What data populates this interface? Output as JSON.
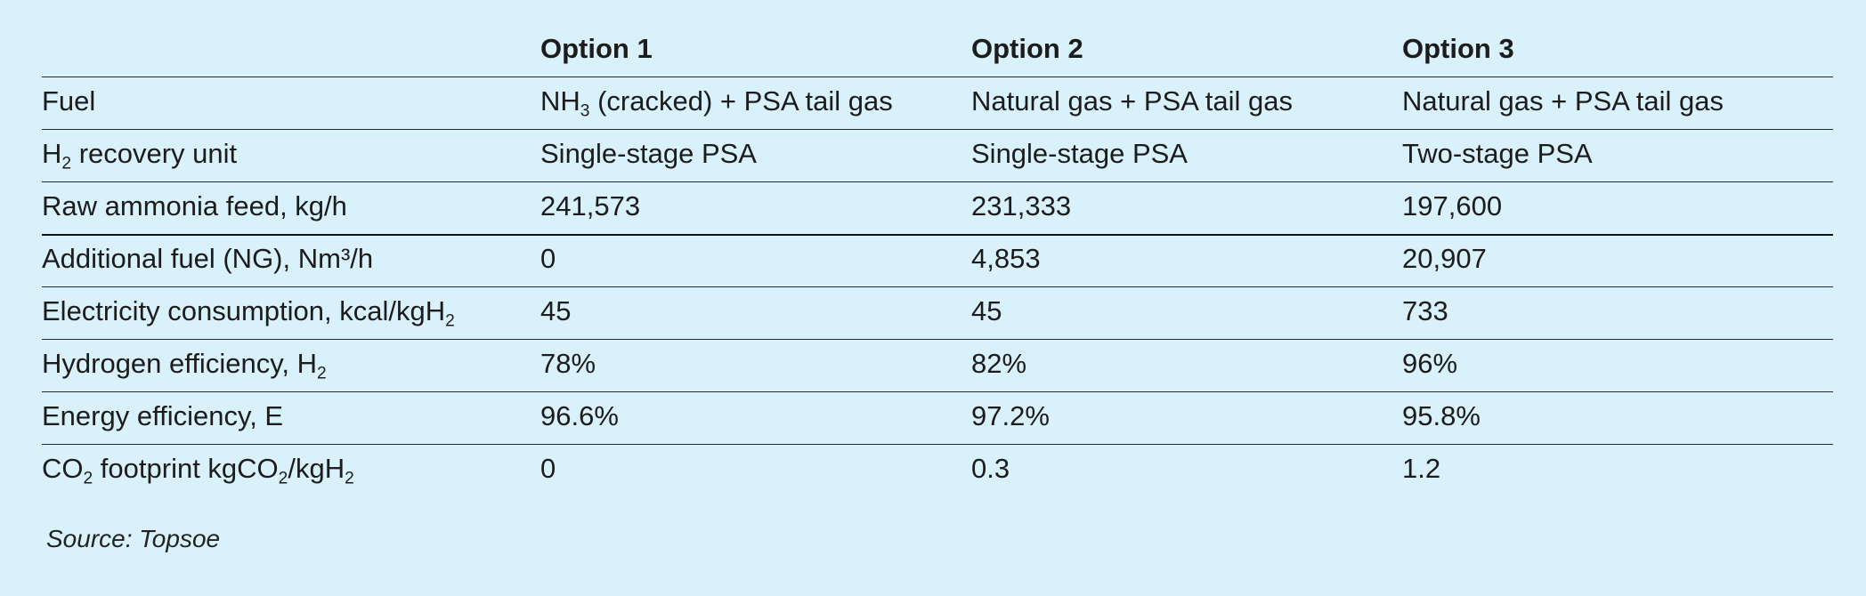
{
  "table": {
    "headers": [
      "",
      "Option 1",
      "Option 2",
      "Option 3"
    ],
    "rows": [
      {
        "label": [
          {
            "t": "Fuel"
          }
        ],
        "cells": [
          [
            {
              "t": "NH"
            },
            {
              "sub": "3"
            },
            {
              "t": " (cracked) + PSA tail gas"
            }
          ],
          [
            {
              "t": "Natural gas + PSA tail gas"
            }
          ],
          [
            {
              "t": "Natural gas + PSA tail gas"
            }
          ]
        ]
      },
      {
        "label": [
          {
            "t": "H"
          },
          {
            "sub": "2"
          },
          {
            "t": " recovery unit"
          }
        ],
        "cells": [
          [
            {
              "t": "Single-stage PSA"
            }
          ],
          [
            {
              "t": "Single-stage PSA"
            }
          ],
          [
            {
              "t": "Two-stage PSA"
            }
          ]
        ]
      },
      {
        "label": [
          {
            "t": "Raw ammonia feed, kg/h"
          }
        ],
        "cells": [
          [
            {
              "t": "241,573"
            }
          ],
          [
            {
              "t": "231,333"
            }
          ],
          [
            {
              "t": "197,600"
            }
          ]
        ]
      },
      {
        "label": [
          {
            "t": "Additional fuel (NG), Nm³/h"
          }
        ],
        "cells": [
          [
            {
              "t": "0"
            }
          ],
          [
            {
              "t": "4,853"
            }
          ],
          [
            {
              "t": "20,907"
            }
          ]
        ]
      },
      {
        "label": [
          {
            "t": "Electricity consumption, kcal/kgH"
          },
          {
            "sub": "2"
          }
        ],
        "cells": [
          [
            {
              "t": "45"
            }
          ],
          [
            {
              "t": "45"
            }
          ],
          [
            {
              "t": "733"
            }
          ]
        ]
      },
      {
        "label": [
          {
            "t": "Hydrogen efficiency, H"
          },
          {
            "sub": "2"
          }
        ],
        "cells": [
          [
            {
              "t": "78%"
            }
          ],
          [
            {
              "t": "82%"
            }
          ],
          [
            {
              "t": "96%"
            }
          ]
        ]
      },
      {
        "label": [
          {
            "t": "Energy efficiency, E"
          }
        ],
        "cells": [
          [
            {
              "t": "96.6%"
            }
          ],
          [
            {
              "t": "97.2%"
            }
          ],
          [
            {
              "t": "95.8%"
            }
          ]
        ]
      },
      {
        "label": [
          {
            "t": "CO"
          },
          {
            "sub": "2"
          },
          {
            "t": " footprint kgCO"
          },
          {
            "sub": "2"
          },
          {
            "t": "/kgH"
          },
          {
            "sub": "2"
          }
        ],
        "cells": [
          [
            {
              "t": "0"
            }
          ],
          [
            {
              "t": "0.3"
            }
          ],
          [
            {
              "t": "1.2"
            }
          ]
        ]
      }
    ]
  },
  "source": "Source: Topsoe",
  "colors": {
    "background": "#d8f1fa",
    "text": "#1c1c1c",
    "rule": "#2a2a2a"
  }
}
